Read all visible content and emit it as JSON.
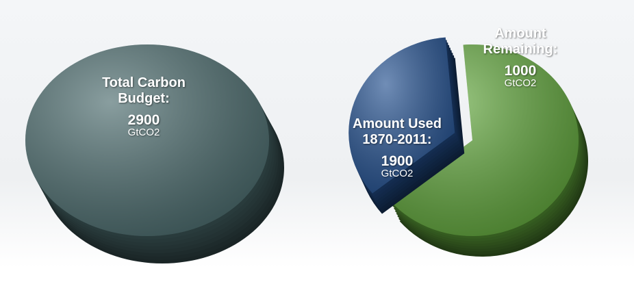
{
  "chart_data": [
    {
      "type": "pie",
      "categories": [
        "Total Carbon Budget:"
      ],
      "values": [
        2900
      ],
      "unit": "GtCO2",
      "colors": [
        "#4a6a6c"
      ]
    },
    {
      "type": "pie",
      "categories": [
        "Amount Used 1870-2011:",
        "Amount Remaining:"
      ],
      "values": [
        1900,
        1000
      ],
      "unit": "GtCO2",
      "colors": [
        "#5fa43a",
        "#23508f"
      ]
    }
  ]
}
